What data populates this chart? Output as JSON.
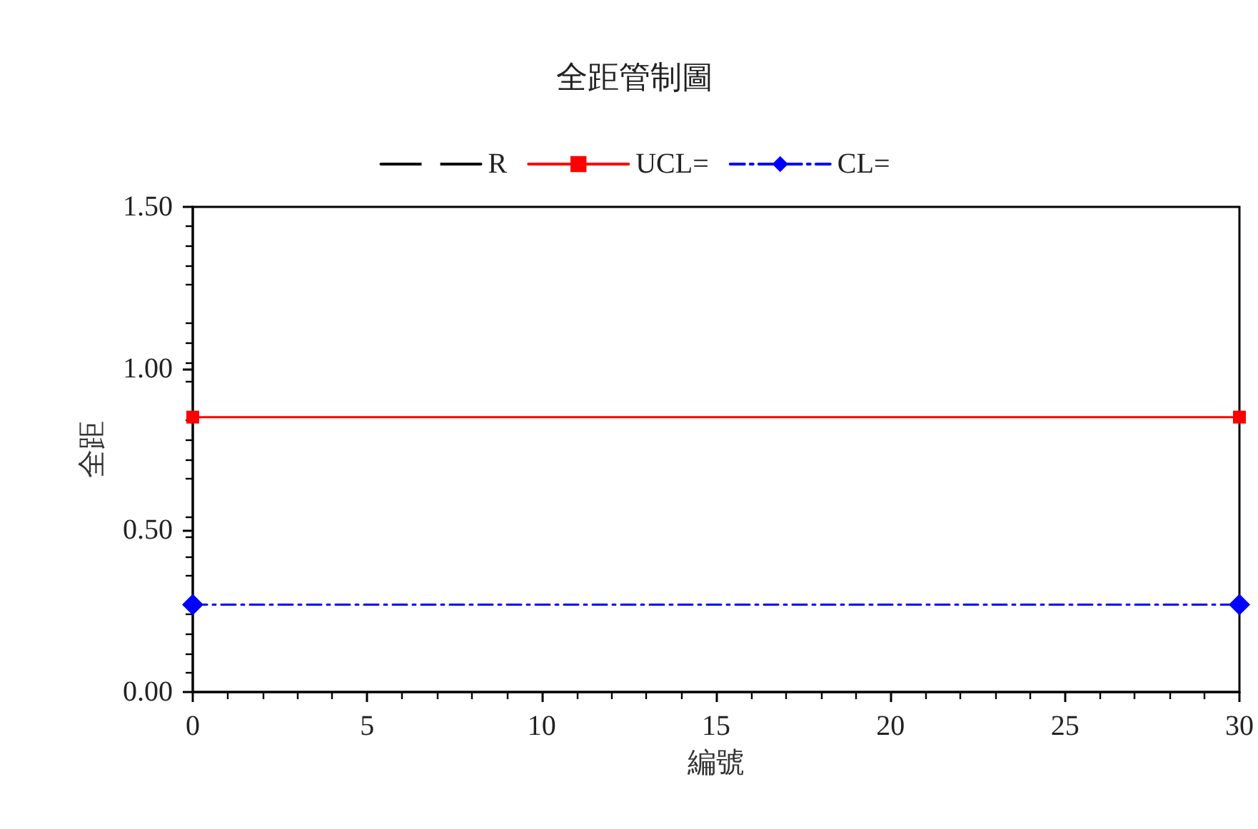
{
  "chart_data": {
    "type": "line",
    "title": "全距管制圖",
    "xlabel": "編號",
    "ylabel": "全距",
    "x": [
      0,
      30
    ],
    "series": [
      {
        "name": "R",
        "color": "#000000",
        "marker": "circle",
        "line_style": "solid",
        "values": [
          null,
          null
        ]
      },
      {
        "name": "UCL=",
        "color": "#ff0000",
        "marker": "square",
        "line_style": "solid",
        "values": [
          0.85,
          0.85
        ]
      },
      {
        "name": "CL=",
        "color": "#0000ff",
        "marker": "diamond",
        "line_style": "dashed",
        "values": [
          0.27,
          0.27
        ]
      }
    ],
    "xlim": [
      0,
      30
    ],
    "xticks": [
      0,
      5,
      10,
      15,
      20,
      25,
      30
    ],
    "ylim": [
      0,
      1.5
    ],
    "yticks": [
      {
        "value": 0,
        "label": "0.00"
      },
      {
        "value": 0.5,
        "label": "0.50"
      },
      {
        "value": 1,
        "label": "1.00"
      },
      {
        "value": 1.5,
        "label": "1.50"
      }
    ],
    "grid": false,
    "legend": "top"
  }
}
